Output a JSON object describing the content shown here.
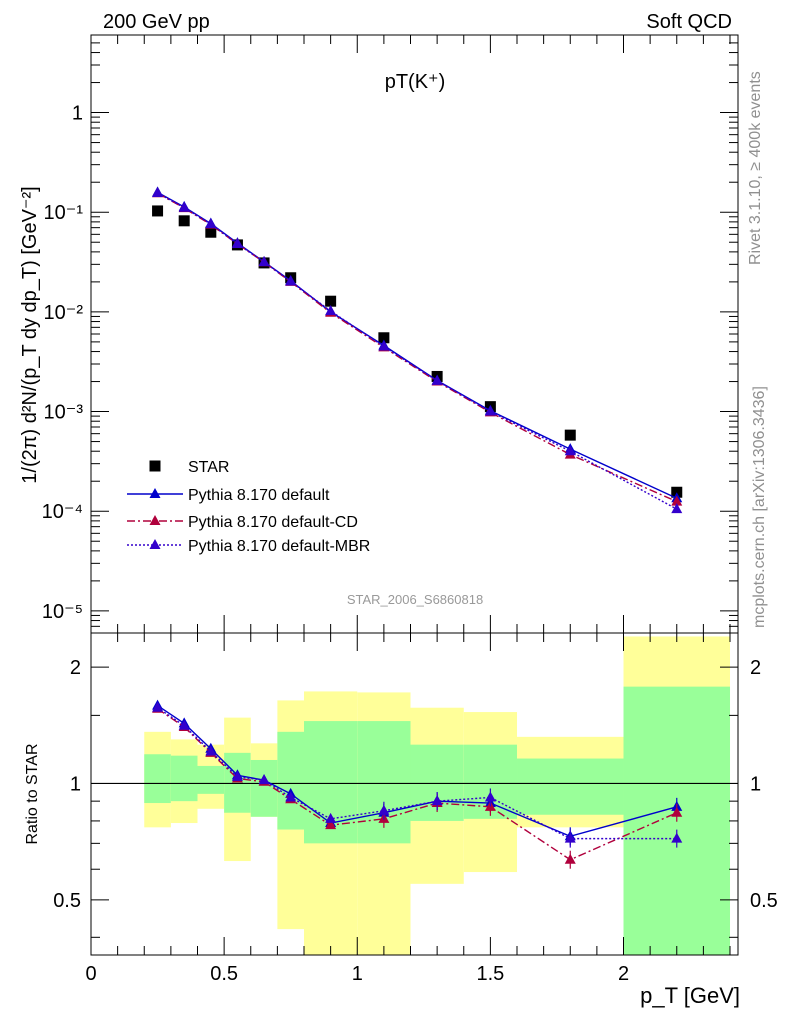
{
  "header": {
    "left": "200 GeV pp",
    "right": "Soft QCD"
  },
  "side_labels": {
    "rivet": "Rivet 3.1.10, ≥ 400k events",
    "mcplots": "mcplots.cern.ch [arXiv:1306.3436]"
  },
  "plot_title": "pT(K⁺)",
  "watermark": "STAR_2006_S6860818",
  "colors": {
    "star": "#000000",
    "default": "#0000cc",
    "cd": "#b0003c",
    "mbr": "#3300cc",
    "band_outer": "#ffff99",
    "band_inner": "#99ff99"
  },
  "chart_data": [
    {
      "type": "scatter",
      "title": "pT(K⁺)",
      "ylabel": "1/(2π) d²N/(p_T dy dp_T) [GeV⁻²]",
      "xlim": [
        0,
        2.43
      ],
      "ylim": [
        6e-06,
        6
      ],
      "yscale": "log",
      "ytick_labels": [
        "10⁻⁵",
        "10⁻⁴",
        "10⁻³",
        "10⁻²",
        "10⁻¹",
        "1"
      ],
      "legend_position": "bottom-left",
      "x": [
        0.25,
        0.35,
        0.45,
        0.55,
        0.65,
        0.75,
        0.9,
        1.1,
        1.3,
        1.5,
        1.8,
        2.2
      ],
      "series": [
        {
          "name": "STAR",
          "marker": "square",
          "values": [
            0.103,
            0.082,
            0.063,
            0.047,
            0.031,
            0.022,
            0.0128,
            0.0055,
            0.00225,
            0.00112,
            0.00058,
            0.000155
          ]
        },
        {
          "name": "Pythia 8.170 default",
          "marker": "triangle",
          "line": "solid",
          "values": [
            0.158,
            0.113,
            0.077,
            0.049,
            0.0318,
            0.0205,
            0.01,
            0.0046,
            0.00205,
            0.00102,
            0.00042,
            0.000135
          ]
        },
        {
          "name": "Pythia 8.170 default-CD",
          "marker": "triangle",
          "line": "dashdot",
          "values": [
            0.155,
            0.11,
            0.075,
            0.048,
            0.0315,
            0.02,
            0.0098,
            0.0044,
            0.002,
            0.00098,
            0.00037,
            0.000125
          ]
        },
        {
          "name": "Pythia 8.170 default-MBR",
          "marker": "triangle",
          "line": "dotted",
          "values": [
            0.156,
            0.111,
            0.076,
            0.048,
            0.0316,
            0.0202,
            0.0102,
            0.0045,
            0.00203,
            0.001,
            0.0004,
            0.000105
          ]
        }
      ]
    },
    {
      "type": "scatter",
      "ylabel": "Ratio to STAR",
      "xlabel": "p_T [GeV]",
      "xlim": [
        0,
        2.43
      ],
      "ylim": [
        0.36,
        2.45
      ],
      "yscale": "log",
      "xtick_labels": [
        "0",
        "0.5",
        "1",
        "1.5",
        "2"
      ],
      "ytick_labels": [
        "0.5",
        "1",
        "2"
      ],
      "reference_line": 1,
      "uncertainty_bands": [
        {
          "x_low": 0.2,
          "x_high": 0.3,
          "inner": [
            0.89,
            1.19
          ],
          "outer": [
            0.77,
            1.36
          ]
        },
        {
          "x_low": 0.3,
          "x_high": 0.4,
          "inner": [
            0.9,
            1.18
          ],
          "outer": [
            0.79,
            1.3
          ]
        },
        {
          "x_low": 0.4,
          "x_high": 0.5,
          "inner": [
            0.94,
            1.11
          ],
          "outer": [
            0.86,
            1.26
          ]
        },
        {
          "x_low": 0.5,
          "x_high": 0.6,
          "inner": [
            0.84,
            1.2
          ],
          "outer": [
            0.63,
            1.48
          ]
        },
        {
          "x_low": 0.6,
          "x_high": 0.7,
          "inner": [
            0.82,
            1.15
          ],
          "outer": [
            0.82,
            1.27
          ]
        },
        {
          "x_low": 0.7,
          "x_high": 0.8,
          "inner": [
            0.76,
            1.36
          ],
          "outer": [
            0.42,
            1.64
          ]
        },
        {
          "x_low": 0.8,
          "x_high": 1.0,
          "inner": [
            0.7,
            1.45
          ],
          "outer": [
            0.3,
            1.73
          ]
        },
        {
          "x_low": 1.0,
          "x_high": 1.2,
          "inner": [
            0.7,
            1.45
          ],
          "outer": [
            0.3,
            1.72
          ]
        },
        {
          "x_low": 1.2,
          "x_high": 1.4,
          "inner": [
            0.8,
            1.26
          ],
          "outer": [
            0.55,
            1.57
          ]
        },
        {
          "x_low": 1.4,
          "x_high": 1.6,
          "inner": [
            0.81,
            1.26
          ],
          "outer": [
            0.59,
            1.53
          ]
        },
        {
          "x_low": 1.6,
          "x_high": 2.0,
          "inner": [
            0.83,
            1.16
          ],
          "outer": [
            0.77,
            1.32
          ]
        },
        {
          "x_low": 2.0,
          "x_high": 2.4,
          "inner": [
            0.3,
            1.78
          ],
          "outer": [
            0.3,
            2.4
          ]
        }
      ],
      "x": [
        0.25,
        0.35,
        0.45,
        0.55,
        0.65,
        0.75,
        0.9,
        1.1,
        1.3,
        1.5,
        1.8,
        2.2
      ],
      "series": [
        {
          "name": "Pythia 8.170 default",
          "values": [
            1.59,
            1.43,
            1.23,
            1.05,
            1.02,
            0.94,
            0.79,
            0.84,
            0.9,
            0.89,
            0.73,
            0.87
          ]
        },
        {
          "name": "Pythia 8.170 default-CD",
          "values": [
            1.56,
            1.4,
            1.2,
            1.03,
            1.01,
            0.91,
            0.78,
            0.81,
            0.89,
            0.87,
            0.635,
            0.84
          ]
        },
        {
          "name": "Pythia 8.170 default-MBR",
          "values": [
            1.57,
            1.41,
            1.21,
            1.04,
            1.02,
            0.92,
            0.81,
            0.85,
            0.9,
            0.92,
            0.72,
            0.72
          ]
        }
      ]
    }
  ]
}
